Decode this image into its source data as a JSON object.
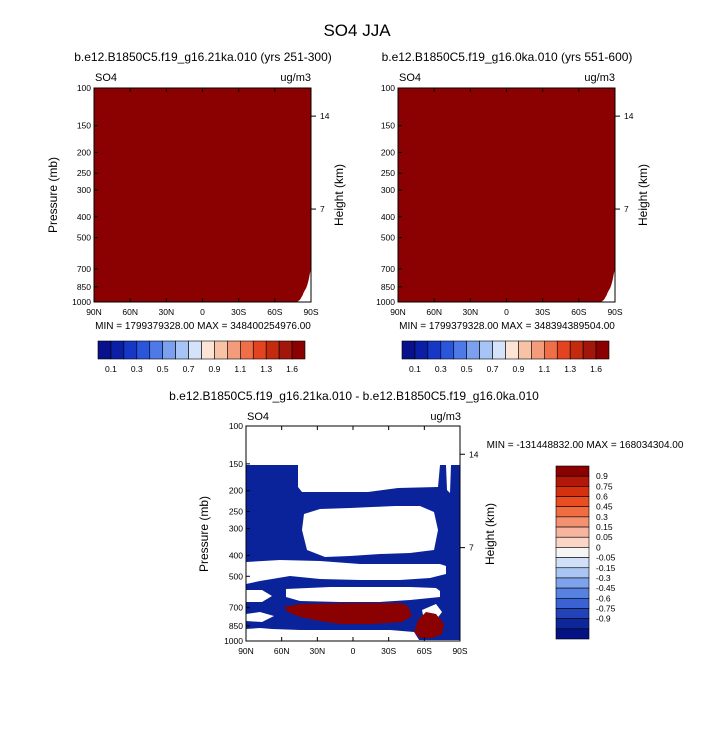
{
  "colors": {
    "sat_red": "#8b0000",
    "diff_blue": "#0a239b",
    "diff_red": "#8b0000",
    "lb1_colors": [
      "#08108c",
      "#0a1fa6",
      "#1737c7",
      "#2a55dc",
      "#4e7ae8",
      "#7ba0ef",
      "#a8c3f5",
      "#d5e3fa",
      "#fbe3d6",
      "#f7c2a6",
      "#f39c7b",
      "#ef6f4b",
      "#e3431f",
      "#c42a0e",
      "#a3160a",
      "#8b0000"
    ],
    "lb3_colors": [
      "#8b0000",
      "#b21807",
      "#d5310f",
      "#ea4d20",
      "#f06d42",
      "#f39171",
      "#f7b59f",
      "#fbd6c7",
      "#f5f5f5",
      "#cfe0f8",
      "#aac5f3",
      "#7ea3ec",
      "#5882e2",
      "#3a62d3",
      "#2243b8",
      "#0d279a",
      "#041285"
    ]
  },
  "header": {
    "title": "SO4 JJA"
  },
  "panels": [
    {
      "subtitle": "b.e12.B1850C5.f19_g16.21ka.010 (yrs 251-300)",
      "left_label": "SO4",
      "right_label": "ug/m3",
      "y_label": "Pressure (mb)",
      "y2_label": "Height (km)",
      "stats": "MIN = 1799379328.00   MAX = 348400254976.00"
    },
    {
      "subtitle": "b.e12.B1850C5.f19_g16.0ka.010 (yrs 551-600)",
      "left_label": "SO4",
      "right_label": "ug/m3",
      "y_label": "Pressure (mb)",
      "y2_label": "Height (km)",
      "stats": "MIN = 1799379328.00   MAX = 348394389504.00"
    },
    {
      "subtitle": "b.e12.B1850C5.f19_g16.21ka.010 - b.e12.B1850C5.f19_g16.0ka.010",
      "left_label": "SO4",
      "right_label": "ug/m3",
      "y_label": "Pressure (mb)",
      "y2_label": "Height (km)",
      "stats": "MIN = -131448832.00   MAX = 168034304.00"
    }
  ],
  "chart_data": [
    {
      "type": "heatmap",
      "title": "b.e12.B1850C5.f19_g16.21ka.010 (yrs 251-300)",
      "xlabel": "",
      "ylabel": "Pressure (mb)",
      "y2label": "Height (km)",
      "x_ticks": [
        "90N",
        "60N",
        "30N",
        "0",
        "30S",
        "60S",
        "90S"
      ],
      "x_tick_values": [
        90,
        60,
        30,
        0,
        -30,
        -60,
        -90
      ],
      "y_ticks": [
        100,
        150,
        200,
        250,
        300,
        400,
        500,
        700,
        850,
        1000
      ],
      "y_scale": "log",
      "y2_ticks": [
        14,
        7
      ],
      "ylim": [
        1000,
        100
      ],
      "xlim": [
        90,
        -90
      ],
      "surface_pressure": [
        [
          -75,
          1000
        ],
        [
          -79,
          995
        ],
        [
          -81,
          975
        ],
        [
          -82,
          950
        ],
        [
          -83,
          930
        ],
        [
          -84,
          900
        ],
        [
          -85,
          880
        ],
        [
          -86,
          860
        ],
        [
          -87,
          830
        ],
        [
          -88,
          790
        ],
        [
          -89,
          740
        ],
        [
          -90,
          700
        ]
      ],
      "fill": "saturated (all values above top contour level)",
      "colorbar_labels": [
        "0.1",
        "0.3",
        "0.5",
        "0.7",
        "0.9",
        "1.1",
        "1.3",
        "1.6"
      ],
      "stats": "MIN = 1799379328.00   MAX = 348400254976.00"
    },
    {
      "type": "heatmap",
      "title": "b.e12.B1850C5.f19_g16.0ka.010 (yrs 551-600)",
      "xlabel": "",
      "ylabel": "Pressure (mb)",
      "y2label": "Height (km)",
      "x_ticks": [
        "90N",
        "60N",
        "30N",
        "0",
        "30S",
        "60S",
        "90S"
      ],
      "x_tick_values": [
        90,
        60,
        30,
        0,
        -30,
        -60,
        -90
      ],
      "y_ticks": [
        100,
        150,
        200,
        250,
        300,
        400,
        500,
        700,
        850,
        1000
      ],
      "y_scale": "log",
      "y2_ticks": [
        14,
        7
      ],
      "ylim": [
        1000,
        100
      ],
      "xlim": [
        90,
        -90
      ],
      "surface_pressure": [
        [
          -75,
          1000
        ],
        [
          -79,
          995
        ],
        [
          -81,
          975
        ],
        [
          -82,
          950
        ],
        [
          -83,
          930
        ],
        [
          -84,
          900
        ],
        [
          -85,
          880
        ],
        [
          -86,
          860
        ],
        [
          -87,
          830
        ],
        [
          -88,
          790
        ],
        [
          -89,
          740
        ],
        [
          -90,
          700
        ]
      ],
      "fill": "saturated (all values above top contour level)",
      "colorbar_labels": [
        "0.1",
        "0.3",
        "0.5",
        "0.7",
        "0.9",
        "1.1",
        "1.3",
        "1.6"
      ],
      "stats": "MIN = 1799379328.00   MAX = 348394389504.00"
    },
    {
      "type": "heatmap",
      "title": "b.e12.B1850C5.f19_g16.21ka.010 - b.e12.B1850C5.f19_g16.0ka.010",
      "xlabel": "",
      "ylabel": "Pressure (mb)",
      "y2label": "Height (km)",
      "x_ticks": [
        "90N",
        "60N",
        "30N",
        "0",
        "30S",
        "60S",
        "90S"
      ],
      "x_tick_values": [
        90,
        60,
        30,
        0,
        -30,
        -60,
        -90
      ],
      "y_ticks": [
        100,
        150,
        200,
        250,
        300,
        400,
        500,
        700,
        850,
        1000
      ],
      "y_scale": "log",
      "y2_ticks": [
        14,
        7
      ],
      "ylim": [
        1000,
        100
      ],
      "xlim": [
        90,
        -90
      ],
      "colorbar_labels": [
        "0.9",
        "0.75",
        "0.6",
        "0.45",
        "0.3",
        "0.15",
        "0.05",
        "0",
        "-0.05",
        "-0.15",
        "-0.3",
        "-0.45",
        "-0.6",
        "-0.75",
        "-0.9"
      ],
      "stats": "MIN = -131448832.00   MAX = 168034304.00"
    }
  ]
}
